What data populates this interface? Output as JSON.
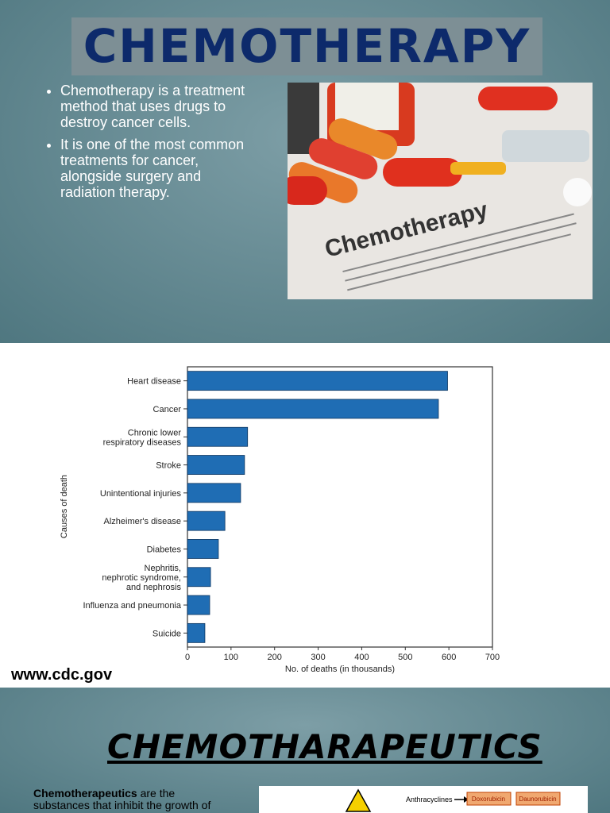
{
  "slide1": {
    "title": "CHEMOTHERAPY",
    "bullets": [
      "Chemotherapy is a treatment method that uses drugs to destroy cancer cells.",
      "It is one of the most common treatments for cancer, alongside surgery and radiation therapy."
    ],
    "image_text": "Chemotherapy"
  },
  "chart_data": {
    "type": "bar",
    "orientation": "horizontal",
    "categories": [
      "Heart disease",
      "Cancer",
      "Chronic lower\nrespiratory diseases",
      "Stroke",
      "Unintentional injuries",
      "Alzheimer's disease",
      "Diabetes",
      "Nephritis,\nnephrotic syndrome,\nand nephrosis",
      "Influenza and pneumonia",
      "Suicide"
    ],
    "values": [
      597,
      576,
      138,
      131,
      122,
      86,
      71,
      53,
      51,
      40
    ],
    "color": "#1f6db4",
    "xlim": [
      0,
      700
    ],
    "xticks": [
      0,
      100,
      200,
      300,
      400,
      500,
      600,
      700
    ],
    "xlabel": "No. of deaths (in thousands)",
    "ylabel": "Causes of death"
  },
  "source": "www.cdc.gov",
  "slide3": {
    "title": "CHEMOTHARAPEUTICS",
    "lead": "Chemotherapeutics",
    "text": " are the substances that inhibit the growth of",
    "diagram": {
      "class": "Anthracyclines",
      "drugs": [
        "Doxorubicin",
        "Daunorubicin"
      ]
    }
  }
}
